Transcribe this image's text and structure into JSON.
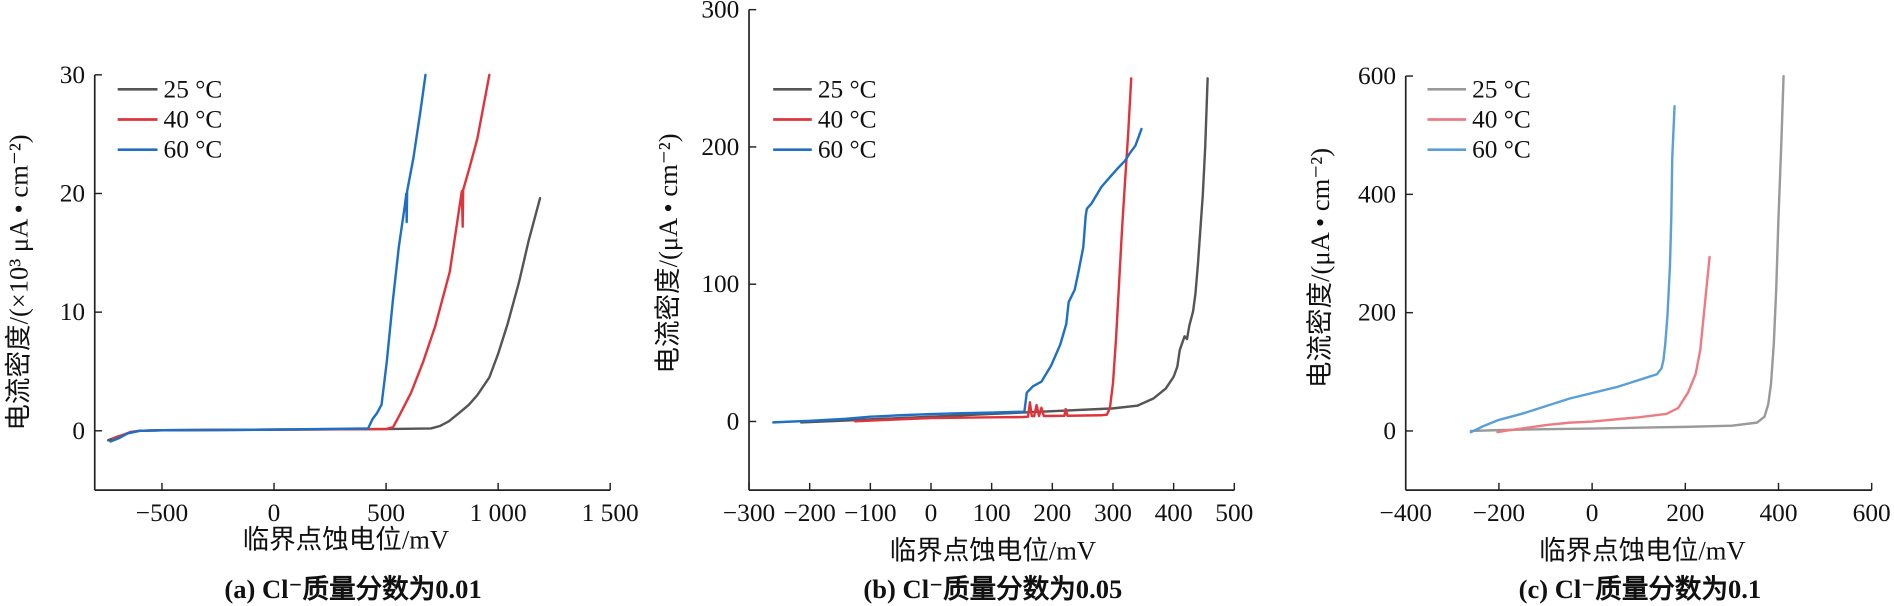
{
  "chart_data": [
    {
      "type": "line",
      "caption": "(a) Cl⁻质量分数为0.01",
      "xlabel": "临界点蚀电位/mV",
      "ylabel": "电流密度/(×10³ μA • cm⁻²)",
      "xlim": [
        -800,
        1500
      ],
      "ylim": [
        -5,
        30
      ],
      "grid": false,
      "legend": "top-left",
      "xticks": [
        {
          "value": -500,
          "label": "−500"
        },
        {
          "value": 0,
          "label": "0"
        },
        {
          "value": 500,
          "label": "500"
        },
        {
          "value": 1000,
          "label": "1 000"
        },
        {
          "value": 1500,
          "label": "1 500"
        }
      ],
      "yticks": [
        {
          "value": 0,
          "label": "0"
        },
        {
          "value": 10,
          "label": "10"
        },
        {
          "value": 20,
          "label": "20"
        },
        {
          "value": 30,
          "label": "30"
        }
      ],
      "series": [
        {
          "name": "25 °C",
          "color": "#555555",
          "x": [
            -740,
            -700,
            -650,
            -600,
            -500,
            0,
            500,
            700,
            740,
            780,
            826,
            870,
            907,
            961,
            1000,
            1042,
            1093,
            1136,
            1187
          ],
          "y": [
            -0.8,
            -0.5,
            -0.2,
            0,
            0.05,
            0.1,
            0.15,
            0.2,
            0.4,
            0.8,
            1.5,
            2.2,
            3,
            4.5,
            6.5,
            9,
            12.5,
            16,
            19.6
          ]
        },
        {
          "name": "40 °C",
          "color": "#e0343c",
          "x": [
            -720,
            -680,
            -640,
            -600,
            -500,
            0,
            500,
            531,
            557,
            611,
            665,
            719,
            784,
            838,
            842,
            844,
            870,
            907,
            961
          ],
          "y": [
            -0.7,
            -0.4,
            -0.1,
            0,
            0.05,
            0.1,
            0.15,
            0.3,
            1.2,
            3.2,
            5.8,
            8.8,
            13.4,
            20.2,
            17.2,
            20.3,
            22,
            24.6,
            30
          ]
        },
        {
          "name": "60 °C",
          "color": "#1f6fc4",
          "x": [
            -730,
            -690,
            -650,
            -600,
            -500,
            0,
            420,
            440,
            460,
            480,
            503,
            530,
            557,
            584,
            590,
            592,
            594,
            622,
            654,
            676
          ],
          "y": [
            -0.9,
            -0.6,
            -0.2,
            0,
            0.05,
            0.1,
            0.2,
            1,
            1.5,
            2.2,
            5.8,
            10.9,
            15.5,
            19,
            20,
            17.6,
            20.2,
            23,
            27,
            30
          ]
        }
      ]
    },
    {
      "type": "line",
      "caption": "(b) Cl⁻质量分数为0.05",
      "xlabel": "临界点蚀电位/mV",
      "ylabel": "电流密度/(μA • cm⁻²)",
      "xlim": [
        -300,
        500
      ],
      "ylim": [
        -50,
        300
      ],
      "grid": false,
      "legend": "top-left",
      "xticks": [
        {
          "value": -300,
          "label": "−300"
        },
        {
          "value": -200,
          "label": "−200"
        },
        {
          "value": -100,
          "label": "−100"
        },
        {
          "value": 0,
          "label": "0"
        },
        {
          "value": 100,
          "label": "100"
        },
        {
          "value": 200,
          "label": "200"
        },
        {
          "value": 300,
          "label": "300"
        },
        {
          "value": 400,
          "label": "400"
        },
        {
          "value": 500,
          "label": "500"
        }
      ],
      "yticks": [
        {
          "value": 0,
          "label": "0"
        },
        {
          "value": 100,
          "label": "100"
        },
        {
          "value": 200,
          "label": "200"
        },
        {
          "value": 300,
          "label": "300"
        }
      ],
      "series": [
        {
          "name": "25 °C",
          "color": "#555555",
          "x": [
            -214,
            -150,
            -100,
            0,
            100,
            200,
            300,
            340,
            367,
            387,
            400,
            406,
            410,
            414,
            418,
            422,
            426,
            432,
            436,
            440,
            444,
            448,
            452,
            456
          ],
          "y": [
            -0.7,
            0.5,
            1.5,
            3.5,
            5.5,
            7.5,
            9.5,
            11.5,
            16.8,
            24,
            32.7,
            40,
            52,
            57,
            62,
            60,
            70,
            80,
            93,
            115,
            140,
            165,
            200,
            250
          ]
        },
        {
          "name": "40 °C",
          "color": "#e0343c",
          "x": [
            -125,
            -80,
            -40,
            0,
            50,
            100,
            150,
            160,
            163,
            166,
            170,
            174,
            178,
            182,
            186,
            220,
            222,
            225,
            280,
            290,
            295,
            300,
            305,
            310,
            315,
            320,
            325,
            330
          ],
          "y": [
            0.1,
            1,
            1.8,
            2.5,
            2.8,
            3,
            3.2,
            3.5,
            14,
            4,
            3.8,
            12,
            4,
            10,
            4,
            4.2,
            9,
            4.2,
            4.5,
            5,
            10,
            28,
            60,
            100,
            140,
            175,
            210,
            250
          ]
        },
        {
          "name": "60 °C",
          "color": "#1f6fc4",
          "x": [
            -260,
            -200,
            -141,
            -100,
            -50,
            0,
            50,
            100,
            154,
            158,
            168,
            182,
            198,
            213,
            223,
            227,
            237,
            243,
            251,
            255,
            257,
            265,
            281,
            295,
            307,
            320,
            327,
            337,
            347
          ],
          "y": [
            -0.7,
            0.5,
            1.9,
            3.5,
            4.5,
            5.4,
            6,
            6.5,
            7.2,
            21,
            25.6,
            29,
            40.6,
            56,
            71,
            87,
            96,
            109,
            127,
            150,
            155,
            159,
            171,
            178,
            184,
            190,
            195,
            201,
            213
          ]
        }
      ]
    },
    {
      "type": "line",
      "caption": "(c) Cl⁻质量分数为0.1",
      "xlabel": "临界点蚀电位/mV",
      "ylabel": "电流密度/(μA • cm⁻²)",
      "xlim": [
        -400,
        600
      ],
      "ylim": [
        -100,
        600
      ],
      "grid": false,
      "legend": "top-left",
      "xticks": [
        {
          "value": -400,
          "label": "−400"
        },
        {
          "value": -200,
          "label": "−200"
        },
        {
          "value": 0,
          "label": "0"
        },
        {
          "value": 200,
          "label": "200"
        },
        {
          "value": 400,
          "label": "400"
        },
        {
          "value": 600,
          "label": "600"
        }
      ],
      "yticks": [
        {
          "value": 0,
          "label": "0"
        },
        {
          "value": 200,
          "label": "200"
        },
        {
          "value": 400,
          "label": "400"
        },
        {
          "value": 600,
          "label": "600"
        }
      ],
      "series": [
        {
          "name": "25 °C",
          "color": "#9a9a9a",
          "x": [
            -260,
            -200,
            -100,
            0,
            100,
            200,
            300,
            354,
            370,
            378,
            384,
            390,
            395,
            400,
            406,
            411
          ],
          "y": [
            0,
            1.5,
            3,
            4,
            5.5,
            7,
            9,
            14,
            24,
            45,
            80,
            147,
            239,
            361,
            484,
            600
          ]
        },
        {
          "name": "40 °C",
          "color": "#ec7c84",
          "x": [
            -203,
            -180,
            -151,
            -99,
            -48,
            0,
            56,
            100,
            160,
            185,
            206,
            222,
            232,
            240,
            245,
            252
          ],
          "y": [
            -2,
            1,
            4,
            10,
            14,
            16,
            20,
            23,
            29,
            39,
            65,
            96,
            137,
            198,
            239,
            294
          ]
        },
        {
          "name": "60 °C",
          "color": "#5aa0d8",
          "x": [
            -260,
            -234,
            -203,
            -151,
            -48,
            56,
            139,
            149,
            153,
            157,
            162,
            167,
            170,
            172,
            177
          ],
          "y": [
            -2,
            8,
            18,
            29,
            55,
            75,
            96,
            106,
            120,
            147,
            198,
            280,
            361,
            463,
            549
          ]
        }
      ]
    }
  ]
}
